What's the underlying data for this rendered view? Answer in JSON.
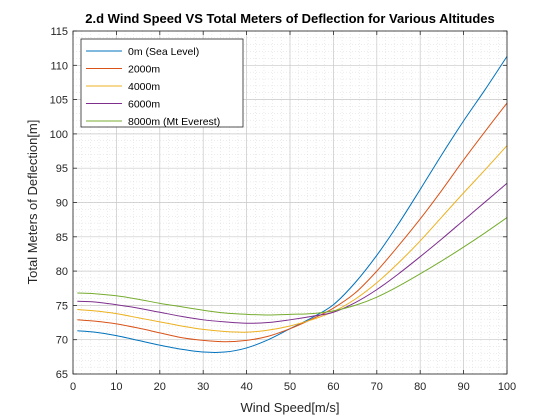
{
  "chart_data": {
    "type": "line",
    "title": "2.d Wind Speed VS Total Meters of Deflection for Various Altitudes",
    "xlabel": "Wind Speed[m/s]",
    "ylabel": "Total Meters of Deflection[m]",
    "xlim": [
      0,
      100
    ],
    "ylim": [
      65,
      115
    ],
    "xticks": [
      0,
      10,
      20,
      30,
      40,
      50,
      60,
      70,
      80,
      90,
      100
    ],
    "yticks": [
      65,
      70,
      75,
      80,
      85,
      90,
      95,
      100,
      105,
      110,
      115
    ],
    "grid": true,
    "minor_grid": true,
    "legend_position": "top-left",
    "x": [
      1,
      5,
      10,
      15,
      20,
      25,
      30,
      35,
      40,
      45,
      50,
      55,
      60,
      65,
      70,
      75,
      80,
      85,
      90,
      95,
      100
    ],
    "series": [
      {
        "name": "0m (Sea Level)",
        "color": "#0072BD",
        "values": [
          71.3,
          71.1,
          70.6,
          69.9,
          69.2,
          68.6,
          68.2,
          68.2,
          68.8,
          70.0,
          71.6,
          73.2,
          75.1,
          78.3,
          82.3,
          86.9,
          91.9,
          97.0,
          101.9,
          106.5,
          111.3
        ]
      },
      {
        "name": "2000m",
        "color": "#D95319",
        "values": [
          72.9,
          72.7,
          72.3,
          71.7,
          71.0,
          70.3,
          69.9,
          69.7,
          69.9,
          70.5,
          71.6,
          73.0,
          74.6,
          76.8,
          80.0,
          83.7,
          87.6,
          91.8,
          96.2,
          100.4,
          104.5
        ]
      },
      {
        "name": "4000m",
        "color": "#EDB120",
        "values": [
          74.4,
          74.2,
          73.8,
          73.2,
          72.6,
          72.0,
          71.5,
          71.2,
          71.1,
          71.4,
          72.0,
          72.9,
          74.1,
          75.9,
          78.3,
          81.2,
          84.4,
          87.9,
          91.4,
          94.8,
          98.3
        ]
      },
      {
        "name": "6000m",
        "color": "#7E2F8E",
        "values": [
          75.6,
          75.5,
          75.1,
          74.6,
          74.0,
          73.4,
          72.9,
          72.6,
          72.4,
          72.5,
          72.9,
          73.4,
          74.0,
          75.4,
          77.3,
          79.6,
          82.1,
          84.7,
          87.4,
          90.1,
          92.8
        ]
      },
      {
        "name": "8000m (Mt Everest)",
        "color": "#77AC30",
        "values": [
          76.8,
          76.7,
          76.4,
          75.9,
          75.3,
          74.8,
          74.3,
          73.9,
          73.7,
          73.6,
          73.7,
          73.8,
          74.2,
          75.0,
          76.2,
          77.8,
          79.6,
          81.5,
          83.5,
          85.6,
          87.8
        ]
      }
    ]
  }
}
